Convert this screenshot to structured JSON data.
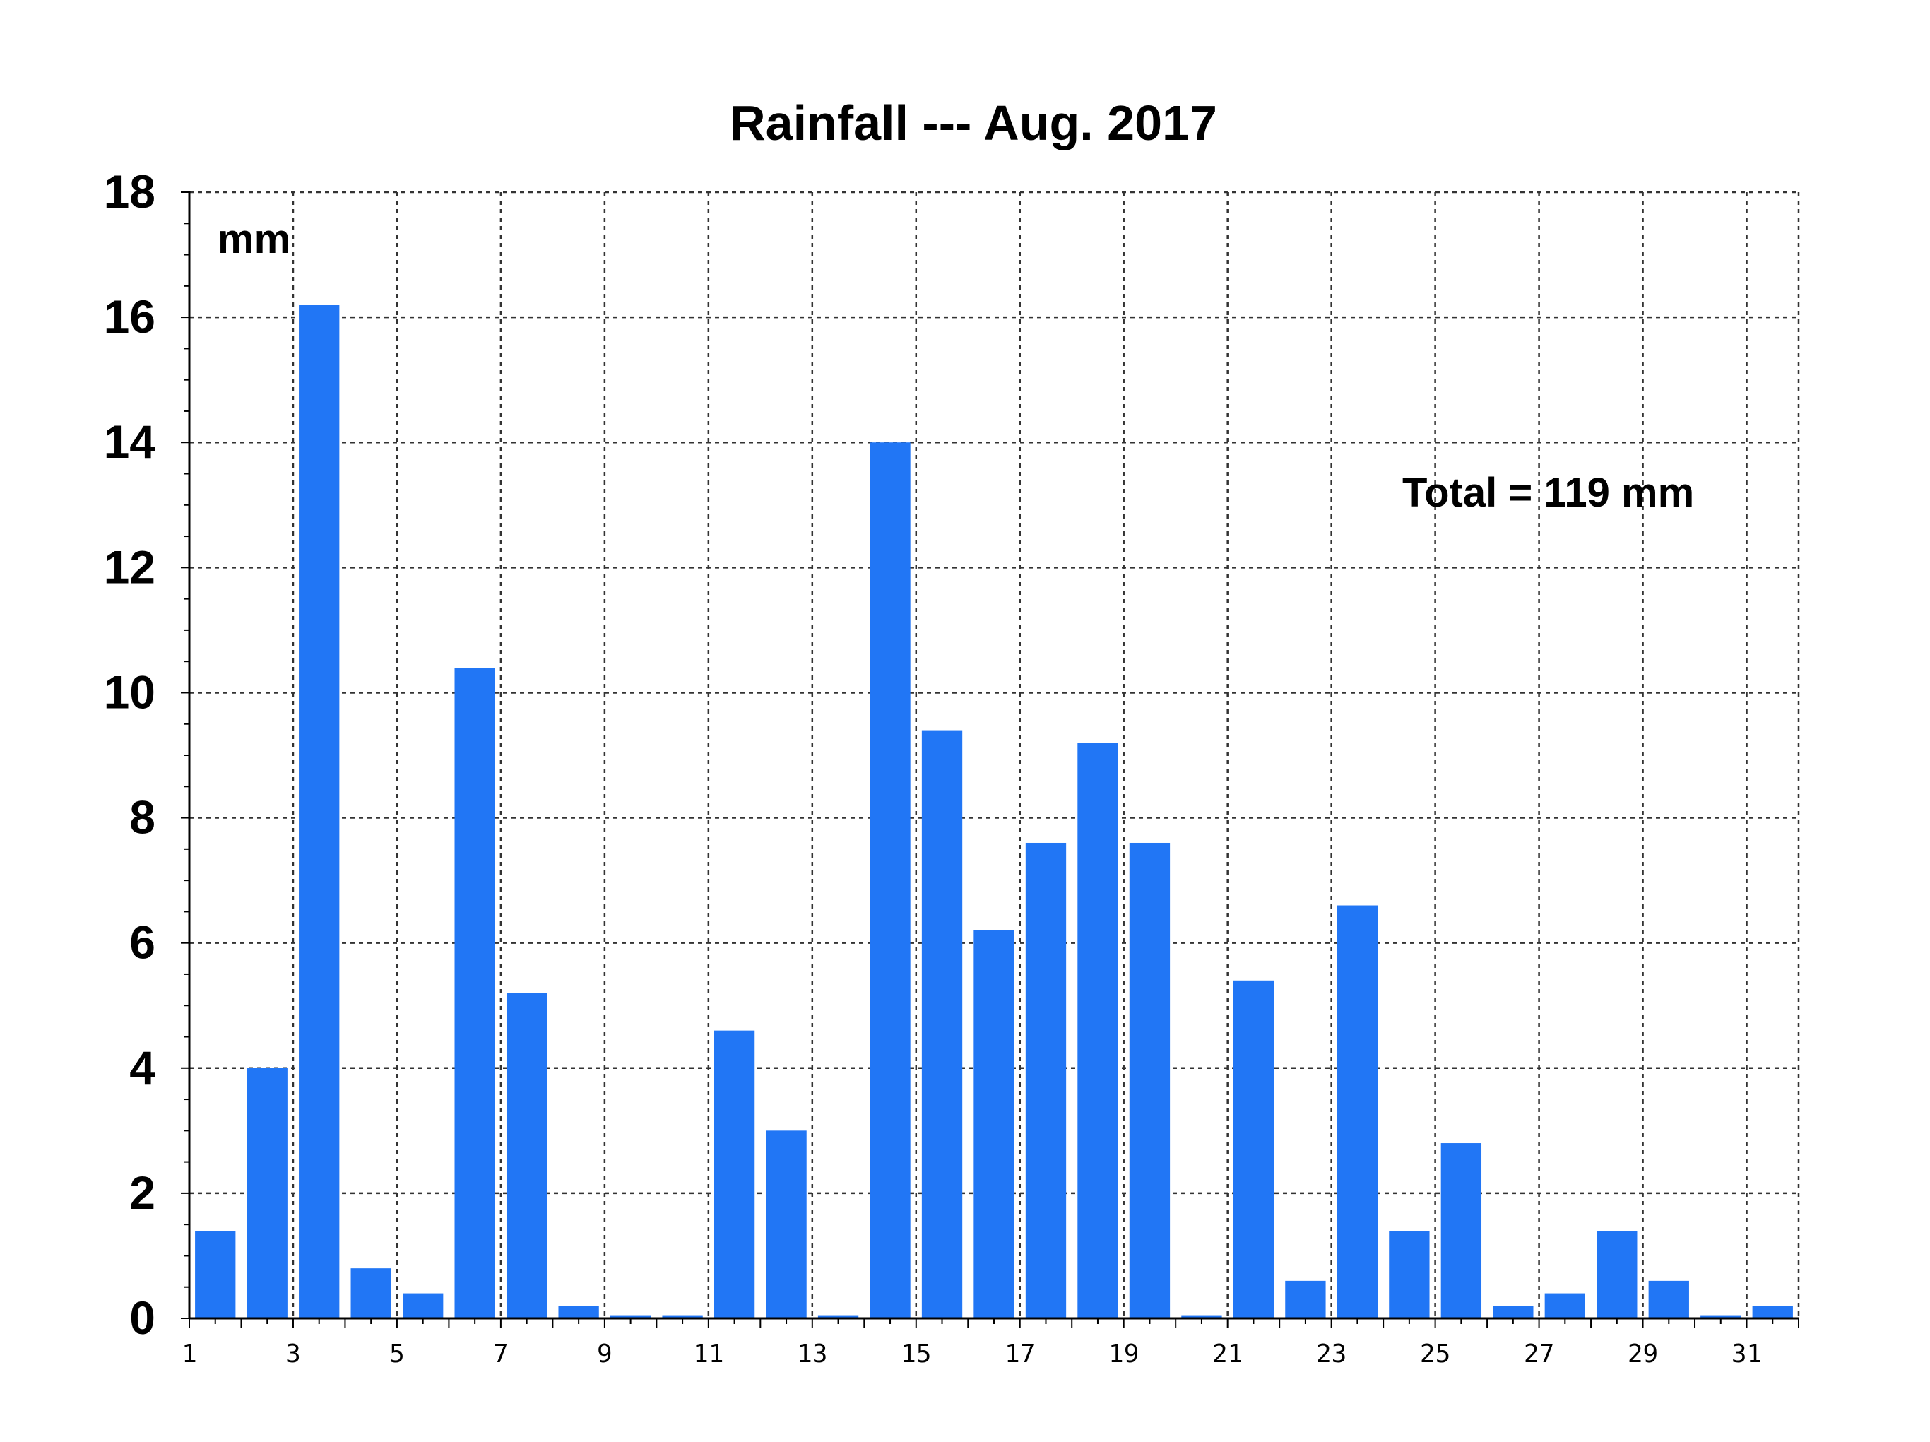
{
  "chart_data": {
    "type": "bar",
    "title": "Rainfall --- Aug. 2017",
    "xlabel": "",
    "ylabel": "",
    "unit_label": "mm",
    "annotation": "Total = 119 mm",
    "categories": [
      1,
      2,
      3,
      4,
      5,
      6,
      7,
      8,
      9,
      10,
      11,
      12,
      13,
      14,
      15,
      16,
      17,
      18,
      19,
      20,
      21,
      22,
      23,
      24,
      25,
      26,
      27,
      28,
      29,
      30,
      31
    ],
    "x_tick_labels": [
      "1",
      "3",
      "5",
      "7",
      "9",
      "11",
      "13",
      "15",
      "17",
      "19",
      "21",
      "23",
      "25",
      "27",
      "29",
      "31"
    ],
    "values": [
      1.4,
      4.0,
      16.2,
      0.8,
      0.4,
      10.4,
      5.2,
      0.2,
      0.05,
      0.05,
      4.6,
      3.0,
      0.05,
      14.0,
      9.4,
      6.2,
      7.6,
      9.2,
      7.6,
      0.05,
      5.4,
      0.6,
      6.6,
      1.4,
      2.8,
      0.2,
      0.4,
      1.4,
      0.6,
      0.05,
      0.2
    ],
    "y_tick_labels": [
      "0",
      "2",
      "4",
      "6",
      "8",
      "10",
      "12",
      "14",
      "16",
      "18"
    ],
    "ylim": [
      0,
      18
    ],
    "xlim": [
      1,
      32
    ],
    "grid": true,
    "bar_color": "#2176f5"
  }
}
